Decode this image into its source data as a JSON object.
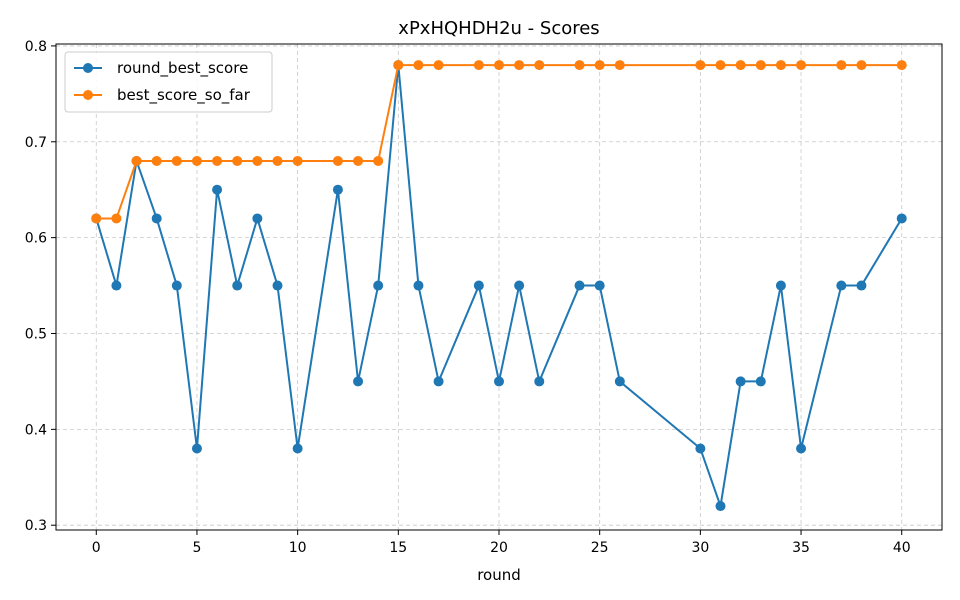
{
  "chart_data": {
    "type": "line",
    "title": "xPxHQHDH2u - Scores",
    "xlabel": "round",
    "ylabel": "",
    "xlim": [
      -2,
      42
    ],
    "ylim": [
      0.295,
      0.802
    ],
    "xticks": [
      0,
      5,
      10,
      15,
      20,
      25,
      30,
      35,
      40
    ],
    "yticks": [
      0.3,
      0.4,
      0.5,
      0.6,
      0.7,
      0.8
    ],
    "xtick_labels": [
      "0",
      "5",
      "10",
      "15",
      "20",
      "25",
      "30",
      "35",
      "40"
    ],
    "ytick_labels": [
      "0.3",
      "0.4",
      "0.5",
      "0.6",
      "0.7",
      "0.8"
    ],
    "grid": true,
    "legend_position": "top-left",
    "x": [
      0,
      1,
      2,
      3,
      4,
      5,
      6,
      7,
      8,
      9,
      10,
      12,
      13,
      14,
      15,
      16,
      17,
      19,
      20,
      21,
      22,
      24,
      25,
      26,
      30,
      31,
      32,
      33,
      34,
      35,
      37,
      38,
      40
    ],
    "series": [
      {
        "name": "round_best_score",
        "color": "#1f77b4",
        "values": [
          0.62,
          0.55,
          0.68,
          0.62,
          0.55,
          0.38,
          0.65,
          0.55,
          0.62,
          0.55,
          0.38,
          0.65,
          0.45,
          0.55,
          0.78,
          0.55,
          0.45,
          0.55,
          0.45,
          0.55,
          0.45,
          0.55,
          0.55,
          0.45,
          0.38,
          0.32,
          0.45,
          0.45,
          0.55,
          0.38,
          0.55,
          0.55,
          0.62
        ]
      },
      {
        "name": "best_score_so_far",
        "color": "#ff7f0e",
        "values": [
          0.62,
          0.62,
          0.68,
          0.68,
          0.68,
          0.68,
          0.68,
          0.68,
          0.68,
          0.68,
          0.68,
          0.68,
          0.68,
          0.68,
          0.78,
          0.78,
          0.78,
          0.78,
          0.78,
          0.78,
          0.78,
          0.78,
          0.78,
          0.78,
          0.78,
          0.78,
          0.78,
          0.78,
          0.78,
          0.78,
          0.78,
          0.78,
          0.78
        ]
      }
    ]
  }
}
